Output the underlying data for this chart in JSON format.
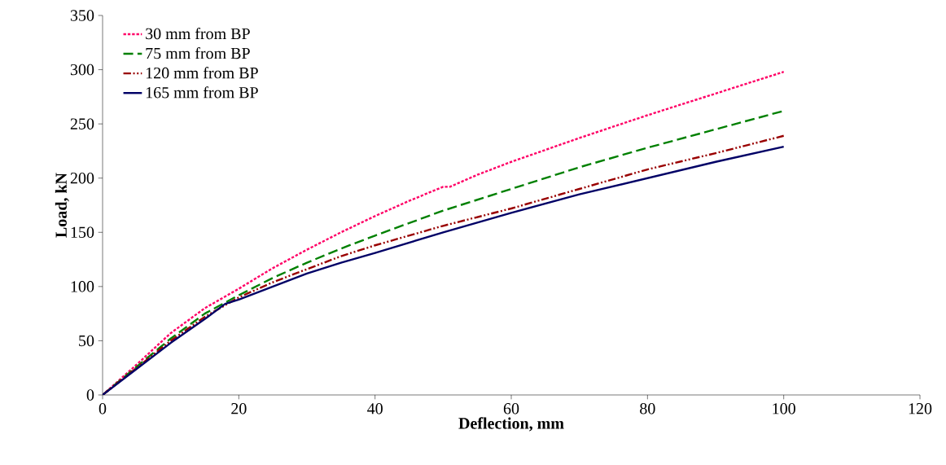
{
  "chart_data": {
    "type": "line",
    "xlabel": "Deflection, mm",
    "ylabel": "Load, kN",
    "xlim": [
      0,
      120
    ],
    "ylim": [
      0,
      350
    ],
    "xticks": [
      0,
      20,
      40,
      60,
      80,
      100,
      120
    ],
    "yticks": [
      0,
      50,
      100,
      150,
      200,
      250,
      300,
      350
    ],
    "grid": false,
    "legend": "top left",
    "marker": "none",
    "series": [
      {
        "name": "30 mm from BP",
        "color": "#ff0066",
        "line_style": "dotted",
        "x": [
          0,
          5,
          10,
          15,
          20,
          25,
          30,
          35,
          40,
          45,
          50,
          51,
          55,
          60,
          70,
          80,
          90,
          100
        ],
        "values": [
          0,
          28,
          57,
          80,
          98,
          117,
          134,
          150,
          165,
          179,
          192,
          192,
          203,
          215,
          237,
          258,
          278,
          298
        ]
      },
      {
        "name": "75 mm from BP",
        "color": "#008000",
        "line_style": "dashed",
        "x": [
          0,
          5,
          10,
          15,
          20,
          25,
          30,
          35,
          40,
          50,
          60,
          70,
          80,
          90,
          100
        ],
        "values": [
          0,
          26,
          52,
          75,
          92,
          108,
          122,
          135,
          147,
          170,
          190,
          210,
          228,
          245,
          262
        ]
      },
      {
        "name": "120 mm from BP",
        "color": "#990000",
        "line_style": "dashdotdotted",
        "x": [
          0,
          5,
          10,
          15,
          20,
          25,
          30,
          35,
          40,
          50,
          60,
          70,
          80,
          90,
          100
        ],
        "values": [
          0,
          25,
          50,
          72,
          90,
          104,
          116,
          128,
          138,
          156,
          172,
          190,
          208,
          223,
          239
        ]
      },
      {
        "name": "165 mm from BP",
        "color": "#000066",
        "line_style": "solid",
        "x": [
          0,
          5,
          10,
          15,
          18,
          20,
          25,
          30,
          35,
          40,
          50,
          60,
          70,
          80,
          90,
          100
        ],
        "values": [
          0,
          24,
          48,
          70,
          84,
          88,
          100,
          112,
          122,
          131,
          150,
          168,
          185,
          200,
          215,
          229
        ]
      }
    ]
  }
}
